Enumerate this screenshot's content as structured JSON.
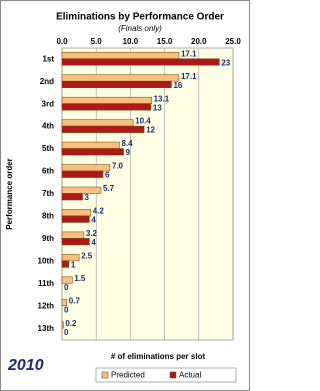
{
  "chart_data": {
    "type": "bar",
    "orientation": "horizontal",
    "title": "Eliminations by Performance Order",
    "subtitle": "(Finals only)",
    "y_label": "Performance order",
    "x_label": "# of eliminations per slot",
    "annotation": "2010",
    "categories": [
      "1st",
      "2nd",
      "3rd",
      "4th",
      "5th",
      "6th",
      "7th",
      "8th",
      "9th",
      "10th",
      "11th",
      "12th",
      "13th"
    ],
    "series": [
      {
        "name": "Predicted",
        "color": "#f8c07a",
        "values": [
          17.1,
          17.1,
          13.1,
          10.4,
          8.4,
          7.0,
          5.7,
          4.2,
          3.2,
          2.5,
          1.5,
          0.7,
          0.2
        ],
        "value_labels": [
          "17.1",
          "17.1",
          "13.1",
          "10.4",
          "8.4",
          "7.0",
          "5.7",
          "4.2",
          "3.2",
          "2.5",
          "1.5",
          "0.7",
          "0.2"
        ]
      },
      {
        "name": "Actual",
        "color": "#b01818",
        "values": [
          23,
          16,
          13,
          12,
          9,
          6,
          3,
          4,
          4,
          1,
          0,
          0,
          0
        ]
      }
    ],
    "xlim": [
      0,
      25
    ],
    "xticks": [
      {
        "value": 0,
        "label": "0.0"
      },
      {
        "value": 5,
        "label": "5.0"
      },
      {
        "value": 10,
        "label": "10.0"
      },
      {
        "value": 15,
        "label": "15.0"
      },
      {
        "value": 20,
        "label": "20.0"
      },
      {
        "value": 25,
        "label": "25.0"
      }
    ],
    "grid": true,
    "legend": "bottom"
  }
}
